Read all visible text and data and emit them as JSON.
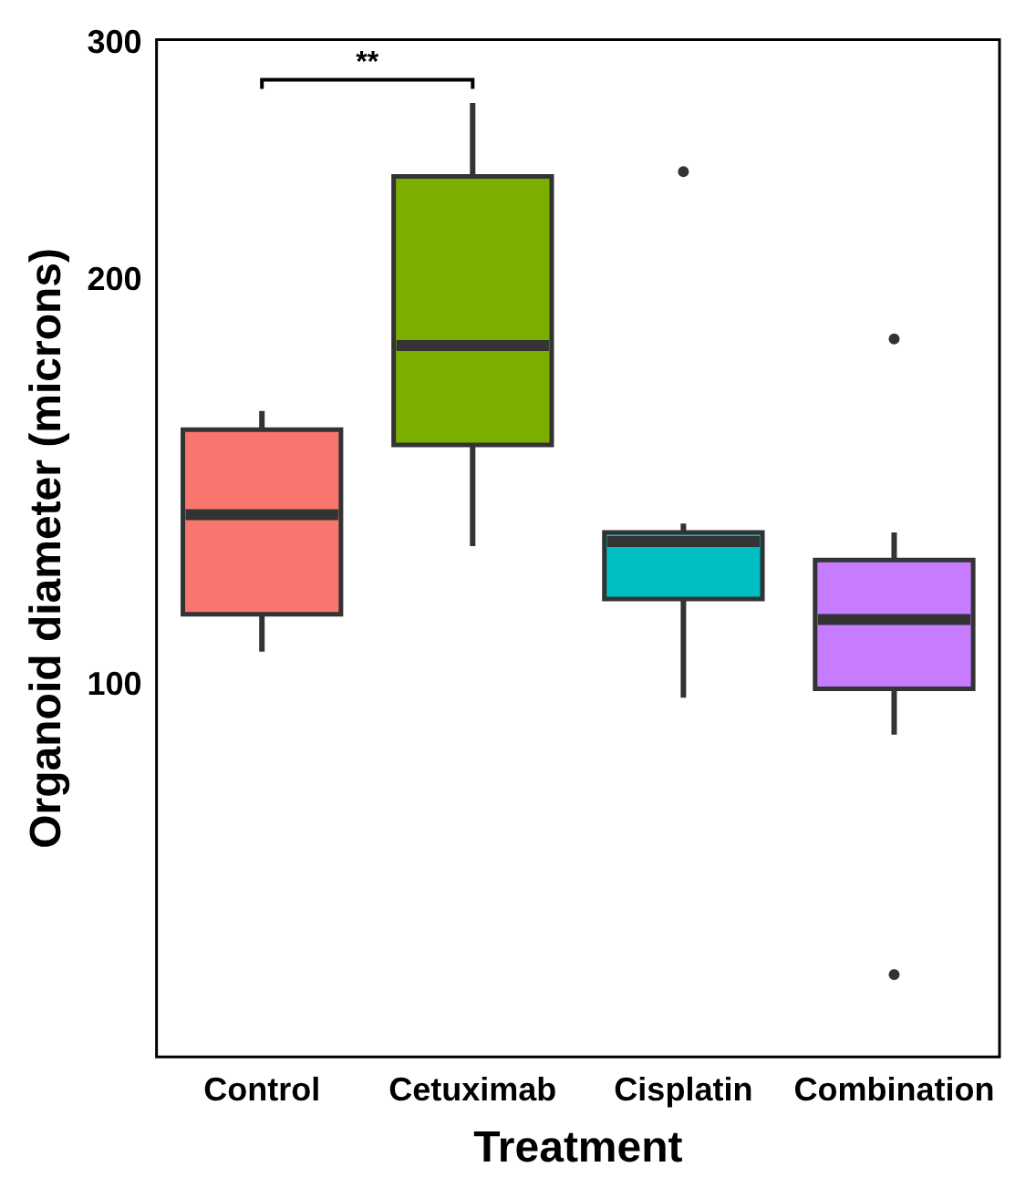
{
  "chart_data": {
    "type": "box",
    "xlabel": "Treatment",
    "ylabel": "Organoid diameter (microns)",
    "categories": [
      "Control",
      "Cetuximab",
      "Cisplatin",
      "Combination"
    ],
    "colors": [
      "#f8766d",
      "#7cae00",
      "#00bfc4",
      "#c77cff"
    ],
    "boxes": [
      {
        "low": 106,
        "q1": 113,
        "median": 134,
        "q3": 155,
        "high": 160
      },
      {
        "low": 127,
        "q1": 151,
        "median": 179,
        "q3": 239,
        "high": 271
      },
      {
        "low": 98,
        "q1": 116,
        "median": 128,
        "q3": 130,
        "high": 132,
        "outliers": [
          241
        ]
      },
      {
        "low": 92,
        "q1": 99.5,
        "median": 112,
        "q3": 124,
        "high": 130,
        "outliers": [
          181,
          61
        ]
      }
    ],
    "ylim": [
      53,
      302
    ],
    "yticks": [
      100,
      200,
      300
    ],
    "log": true,
    "annotations": [
      "**"
    ]
  }
}
